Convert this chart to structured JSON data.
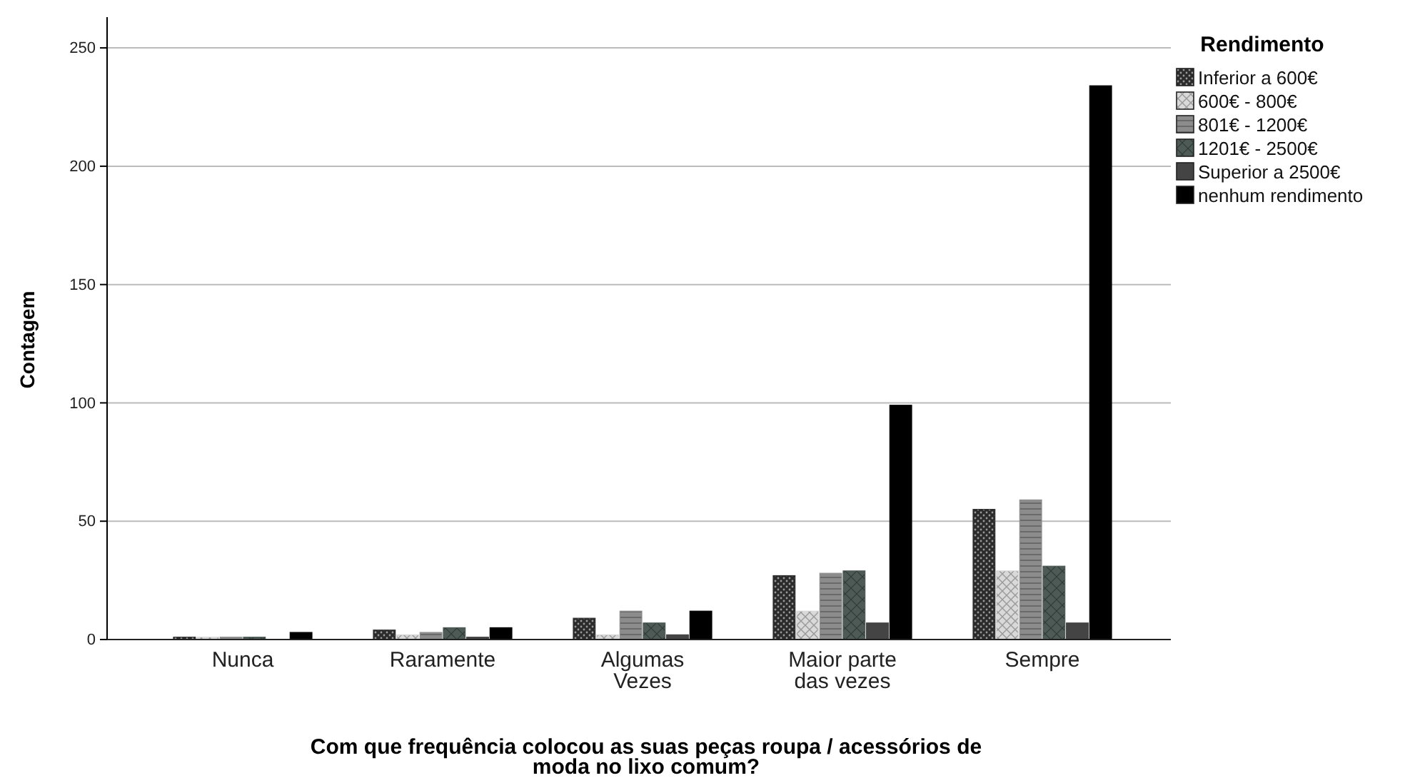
{
  "chart_data": {
    "type": "bar",
    "xlabel": "Com que frequência colocou as suas peças roupa / acessórios de moda no lixo comum?",
    "ylabel": "Contagem",
    "legend_title": "Rendimento",
    "categories": [
      "Nunca",
      "Raramente",
      "Algumas Vezes",
      "Maior parte das vezes",
      "Sempre"
    ],
    "series": [
      {
        "name": "Inferior a 600€",
        "color": "#2b2b2b",
        "values": [
          1,
          4,
          9,
          27,
          55
        ]
      },
      {
        "name": "600€ - 800€",
        "color": "#d9d9d9",
        "values": [
          1,
          2,
          2,
          12,
          29
        ]
      },
      {
        "name": "801€ - 1200€",
        "color": "#8c8c8c",
        "values": [
          1,
          3,
          12,
          28,
          59
        ]
      },
      {
        "name": "1201€ - 2500€",
        "color": "#4d5a55",
        "values": [
          1,
          5,
          7,
          29,
          31
        ]
      },
      {
        "name": "Superior a 2500€",
        "color": "#444444",
        "values": [
          0,
          1,
          2,
          7,
          7
        ]
      },
      {
        "name": "nenhum rendimento",
        "color": "#000000",
        "values": [
          3,
          5,
          12,
          99,
          234
        ]
      }
    ],
    "ylim": [
      0,
      263
    ],
    "yticks": [
      0,
      50,
      100,
      150,
      200,
      250
    ],
    "grid": "y",
    "legend": "top right"
  }
}
